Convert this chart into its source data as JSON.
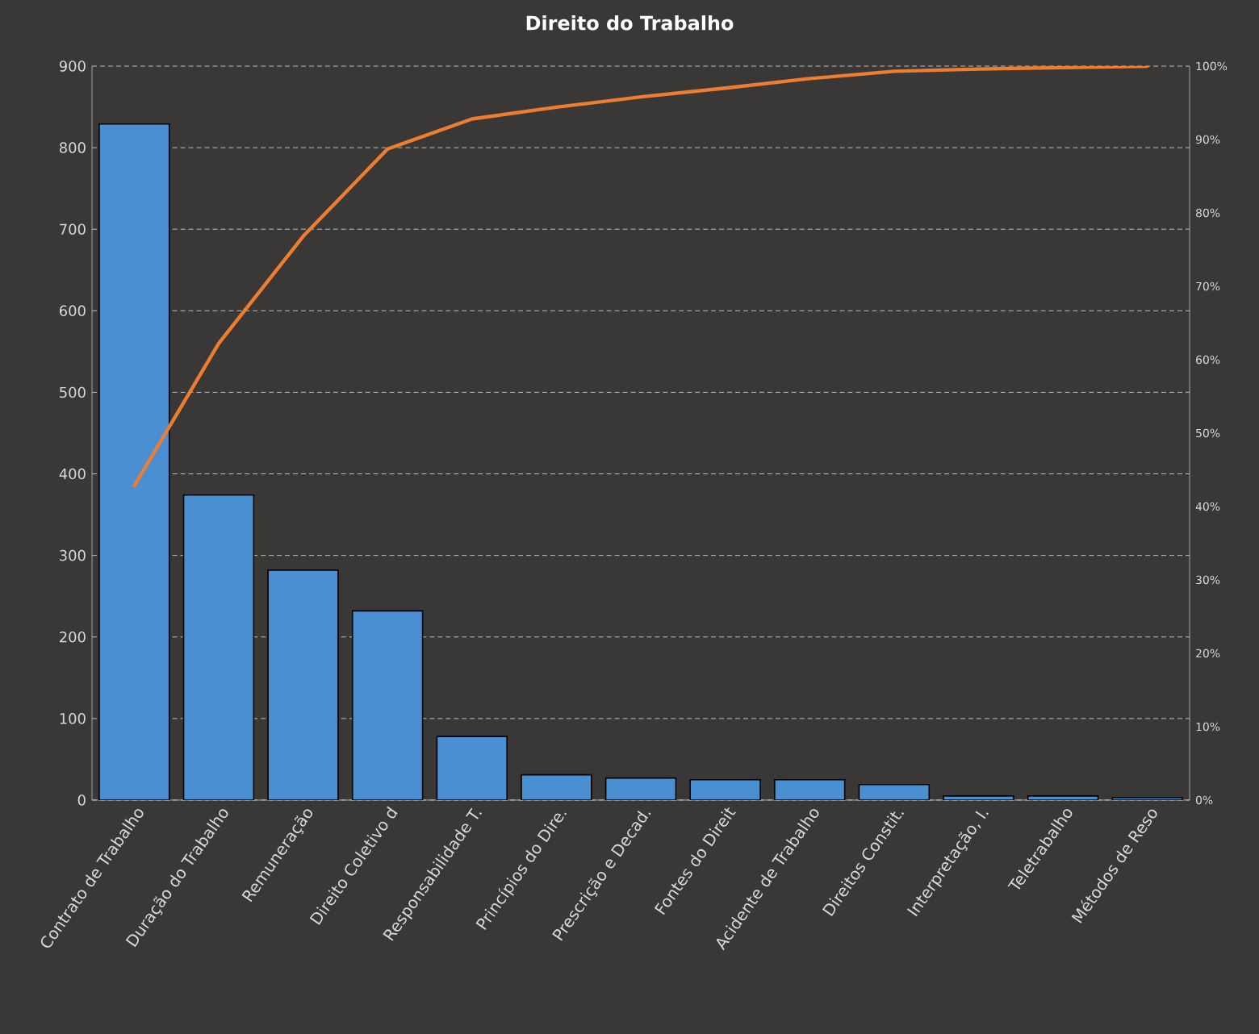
{
  "chart_data": {
    "type": "bar",
    "title": "Direito do Trabalho",
    "categories": [
      "Contrato de Trabalho",
      "Duração do Trabalho",
      "Remuneração",
      "Direito Coletivo d",
      "Responsabilidade T.",
      "Princípios do Dire.",
      "Prescrição e Decad.",
      "Fontes do Direit",
      "Acidente de Trabalho",
      "Direitos Constit.",
      "Interpretação, I.",
      "Teletrabalho",
      "Métodos de Reso"
    ],
    "series": [
      {
        "color": "#4a8fd2",
        "values": [
          829,
          374,
          282,
          232,
          78,
          31,
          27,
          25,
          25,
          19,
          5,
          5,
          3
        ]
      },
      {
        "type": "line",
        "axis": "y2",
        "color": "#ed7d31",
        "values": [
          42.8,
          62.2,
          76.8,
          88.7,
          92.8,
          94.4,
          95.8,
          97.0,
          98.3,
          99.3,
          99.6,
          99.8,
          100
        ]
      }
    ],
    "ylim": [
      0,
      900
    ],
    "yticks": [
      0,
      100,
      200,
      300,
      400,
      500,
      600,
      700,
      800,
      900
    ],
    "y2lim": [
      0,
      100
    ],
    "y2ticks": [
      {
        "value": 0,
        "label": "0%"
      },
      {
        "value": 10,
        "label": "10%"
      },
      {
        "value": 20,
        "label": "20%"
      },
      {
        "value": 30,
        "label": "30%"
      },
      {
        "value": 40,
        "label": "40%"
      },
      {
        "value": 50,
        "label": "50%"
      },
      {
        "value": 60,
        "label": "60%"
      },
      {
        "value": 70,
        "label": "70%"
      },
      {
        "value": 80,
        "label": "80%"
      },
      {
        "value": 90,
        "label": "90%"
      },
      {
        "value": 100,
        "label": "100%"
      }
    ],
    "grid": "y",
    "marker": "none",
    "line_style": "solid"
  }
}
